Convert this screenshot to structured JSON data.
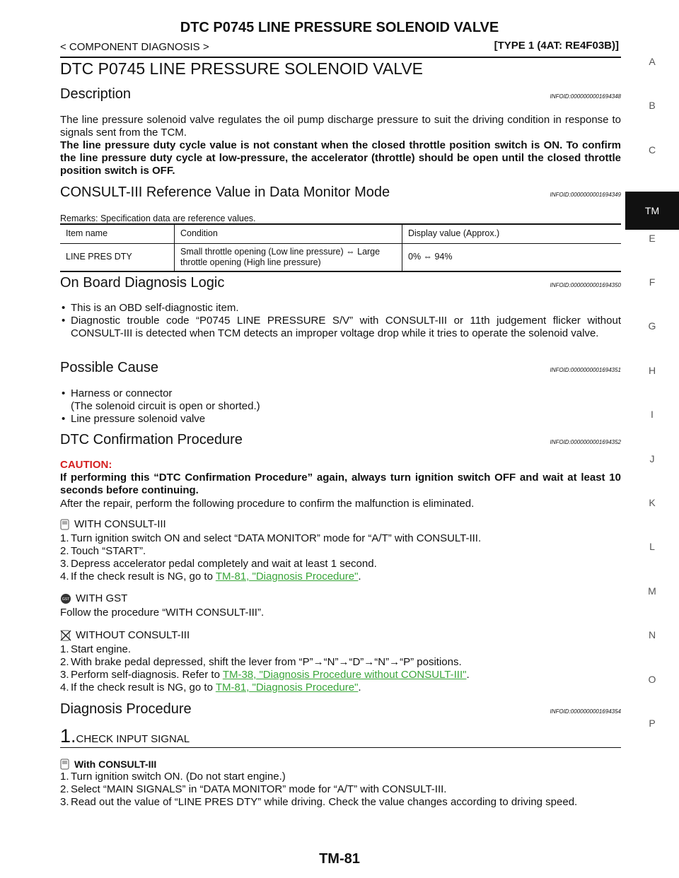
{
  "header": {
    "title": "DTC P0745 LINE PRESSURE SOLENOID VALVE",
    "breadcrumb": "< COMPONENT DIAGNOSIS >",
    "type": "[TYPE 1 (4AT: RE4F03B)]"
  },
  "side_index": [
    "A",
    "B",
    "C",
    "TM",
    "E",
    "F",
    "G",
    "H",
    "I",
    "J",
    "K",
    "L",
    "M",
    "N",
    "O",
    "P"
  ],
  "page_title": "DTC P0745 LINE PRESSURE SOLENOID VALVE",
  "description": {
    "heading": "Description",
    "infoid": "INFOID:0000000001694348",
    "text": "The line pressure solenoid valve regulates the oil pump discharge pressure to suit the driving condition in response to signals sent from the TCM.",
    "bold": "The line pressure duty cycle value is not constant when the closed throttle position switch is ON. To confirm the line pressure duty cycle at low-pressure, the accelerator (throttle) should be open until the closed throttle position switch is OFF."
  },
  "reference": {
    "heading": "CONSULT-III Reference Value in Data Monitor Mode",
    "infoid": "INFOID:0000000001694349",
    "remarks": "Remarks: Specification data are reference values.",
    "table": {
      "columns": [
        "Item name",
        "Condition",
        "Display value (Approx.)"
      ],
      "rows": [
        [
          "LINE PRES DTY",
          "Small throttle opening (Low line pressure) ⇔ Large throttle opening (High line pressure)",
          "0% ⇔ 94%"
        ]
      ]
    }
  },
  "logic": {
    "heading": "On Board Diagnosis Logic",
    "infoid": "INFOID:0000000001694350",
    "bullets": [
      {
        "text": "This is an OBD self-diagnostic item."
      },
      {
        "text": "Diagnostic trouble code “P0745 LINE PRESSURE S/V” with CONSULT-III or 11th judgement flicker without CONSULT-III is detected when TCM detects an improper voltage drop while it tries to operate the solenoid valve."
      }
    ]
  },
  "cause": {
    "heading": "Possible Cause",
    "infoid": "INFOID:0000000001694351",
    "bullets": [
      {
        "text": "Harness or connector",
        "note": "(The solenoid circuit is open or shorted.)"
      },
      {
        "text": "Line pressure solenoid valve"
      }
    ]
  },
  "confirmation": {
    "heading": "DTC Confirmation Procedure",
    "infoid": "INFOID:0000000001694352",
    "caution_label": "CAUTION:",
    "caution": "If performing this “DTC Confirmation Procedure” again, always turn ignition switch OFF and wait at least 10 seconds before continuing.",
    "after": "After the repair, perform the following procedure to confirm the malfunction is eliminated.",
    "with_consult": {
      "title": "WITH CONSULT-III",
      "steps": [
        {
          "n": "1.",
          "text": "Turn ignition switch ON and select “DATA MONITOR” mode for “A/T” with CONSULT-III."
        },
        {
          "n": "2.",
          "text": "Touch “START”."
        },
        {
          "n": "3.",
          "text": "Depress accelerator pedal completely and wait at least 1 second."
        },
        {
          "n": "4.",
          "text": "If the check result is NG, go to ",
          "link": "TM-81, \"Diagnosis Procedure\"",
          "end": "."
        }
      ]
    },
    "with_gst": {
      "title": "WITH GST",
      "text": "Follow the procedure “WITH CONSULT-III”."
    },
    "without_consult": {
      "title": "WITHOUT CONSULT-III",
      "steps": [
        {
          "n": "1.",
          "text": "Start engine."
        },
        {
          "n": "2.",
          "text": "With brake pedal depressed, shift the lever from “P”→“N”→“D”→“N”→“P” positions."
        },
        {
          "n": "3.",
          "text": "Perform self-diagnosis. Refer to ",
          "link": "TM-38, \"Diagnosis Procedure without CONSULT-III\"",
          "end": "."
        },
        {
          "n": "4.",
          "text": "If the check result is NG, go to ",
          "link": "TM-81, \"Diagnosis Procedure\"",
          "end": "."
        }
      ]
    }
  },
  "diagnosis": {
    "heading": "Diagnosis Procedure",
    "infoid": "INFOID:0000000001694354",
    "step_number": "1.",
    "step_title": "CHECK INPUT SIGNAL",
    "mode": "With CONSULT-III",
    "steps": [
      {
        "n": "1.",
        "text": "Turn ignition switch ON. (Do not start engine.)"
      },
      {
        "n": "2.",
        "text": "Select “MAIN SIGNALS” in “DATA MONITOR” mode for “A/T” with CONSULT-III."
      },
      {
        "n": "3.",
        "text": "Read out the value of “LINE PRES DTY” while driving. Check the value changes according to driving speed."
      }
    ]
  },
  "footer": "TM-81"
}
